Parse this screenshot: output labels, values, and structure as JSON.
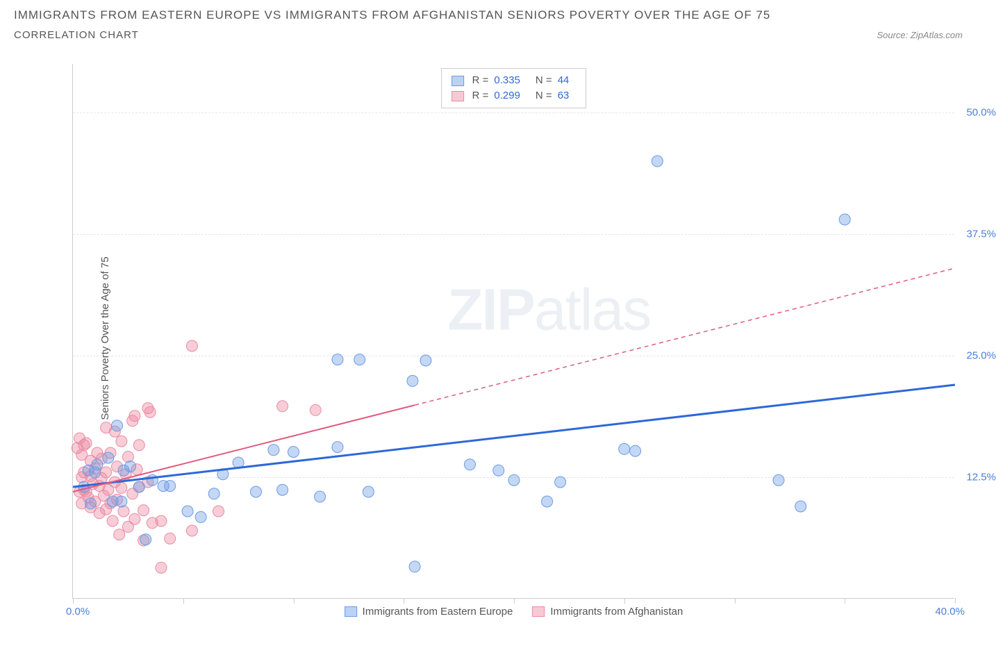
{
  "header": {
    "title": "IMMIGRANTS FROM EASTERN EUROPE VS IMMIGRANTS FROM AFGHANISTAN SENIORS POVERTY OVER THE AGE OF 75",
    "subtitle": "CORRELATION CHART",
    "source_prefix": "Source: ",
    "source_name": "ZipAtlas.com"
  },
  "chart": {
    "type": "scatter",
    "y_label": "Seniors Poverty Over the Age of 75",
    "x_min_label": "0.0%",
    "x_max_label": "40.0%",
    "xlim": [
      0,
      40
    ],
    "ylim": [
      0,
      55
    ],
    "y_ticks": [
      {
        "v": 12.5,
        "label": "12.5%"
      },
      {
        "v": 25.0,
        "label": "25.0%"
      },
      {
        "v": 37.5,
        "label": "37.5%"
      },
      {
        "v": 50.0,
        "label": "50.0%"
      }
    ],
    "x_tick_positions": [
      0,
      5,
      10,
      15,
      20,
      25,
      30,
      35,
      40
    ],
    "grid_color": "#e5e5e5",
    "axis_color": "#cccccc",
    "background_color": "#ffffff",
    "watermark_zip": "ZIP",
    "watermark_atlas": "atlas",
    "series": [
      {
        "key": "eastern_europe",
        "label": "Immigrants from Eastern Europe",
        "color_fill": "rgba(107,155,228,0.40)",
        "color_stroke": "#6b9be4",
        "marker_radius": 8,
        "R": "0.335",
        "N": "44",
        "trend": {
          "x1": 0,
          "y1": 11.5,
          "x2": 40,
          "y2": 22.0,
          "solid_until_x": 40,
          "color": "#2d68d8",
          "width": 3
        },
        "points": [
          [
            0.5,
            11.5
          ],
          [
            0.7,
            13.2
          ],
          [
            0.8,
            9.8
          ],
          [
            1.0,
            13.0
          ],
          [
            1.1,
            13.8
          ],
          [
            1.6,
            14.5
          ],
          [
            1.8,
            10.0
          ],
          [
            2.0,
            17.8
          ],
          [
            2.2,
            10.0
          ],
          [
            2.3,
            13.2
          ],
          [
            2.6,
            13.6
          ],
          [
            3.0,
            11.5
          ],
          [
            3.3,
            6.1
          ],
          [
            3.6,
            12.2
          ],
          [
            4.1,
            11.6
          ],
          [
            4.4,
            11.6
          ],
          [
            5.2,
            9.0
          ],
          [
            5.8,
            8.4
          ],
          [
            6.4,
            10.8
          ],
          [
            6.8,
            12.8
          ],
          [
            7.5,
            14.0
          ],
          [
            8.3,
            11.0
          ],
          [
            9.1,
            15.3
          ],
          [
            9.5,
            11.2
          ],
          [
            10.0,
            15.1
          ],
          [
            11.2,
            10.5
          ],
          [
            12.0,
            15.6
          ],
          [
            12.0,
            24.6
          ],
          [
            13.0,
            24.6
          ],
          [
            13.4,
            11.0
          ],
          [
            15.4,
            22.4
          ],
          [
            15.5,
            3.3
          ],
          [
            16.0,
            24.5
          ],
          [
            18.0,
            13.8
          ],
          [
            19.3,
            13.2
          ],
          [
            20.0,
            12.2
          ],
          [
            21.5,
            10.0
          ],
          [
            22.1,
            12.0
          ],
          [
            25.0,
            15.4
          ],
          [
            25.5,
            15.2
          ],
          [
            26.5,
            45.0
          ],
          [
            32.0,
            12.2
          ],
          [
            33.0,
            9.5
          ],
          [
            35.0,
            39.0
          ]
        ]
      },
      {
        "key": "afghanistan",
        "label": "Immigrants from Afghanistan",
        "color_fill": "rgba(236,138,162,0.42)",
        "color_stroke": "#ec8aa2",
        "marker_radius": 8,
        "R": "0.299",
        "N": "63",
        "trend": {
          "x1": 0,
          "y1": 11.0,
          "x2": 40,
          "y2": 34.0,
          "solid_until_x": 15.5,
          "color": "#e05a7d",
          "width": 2
        },
        "points": [
          [
            0.2,
            15.5
          ],
          [
            0.3,
            11.0
          ],
          [
            0.3,
            16.5
          ],
          [
            0.4,
            12.5
          ],
          [
            0.4,
            14.8
          ],
          [
            0.4,
            9.8
          ],
          [
            0.5,
            11.2
          ],
          [
            0.5,
            15.8
          ],
          [
            0.5,
            13.0
          ],
          [
            0.6,
            11.0
          ],
          [
            0.6,
            16.0
          ],
          [
            0.7,
            10.4
          ],
          [
            0.8,
            12.6
          ],
          [
            0.8,
            9.4
          ],
          [
            0.8,
            14.2
          ],
          [
            0.9,
            11.8
          ],
          [
            1.0,
            10.0
          ],
          [
            1.0,
            13.4
          ],
          [
            1.1,
            15.0
          ],
          [
            1.2,
            8.8
          ],
          [
            1.2,
            11.6
          ],
          [
            1.3,
            12.4
          ],
          [
            1.3,
            14.4
          ],
          [
            1.4,
            10.6
          ],
          [
            1.5,
            9.2
          ],
          [
            1.5,
            13.0
          ],
          [
            1.5,
            17.6
          ],
          [
            1.6,
            11.2
          ],
          [
            1.7,
            9.8
          ],
          [
            1.7,
            15.0
          ],
          [
            1.8,
            8.0
          ],
          [
            1.9,
            12.0
          ],
          [
            1.9,
            17.2
          ],
          [
            2.0,
            10.2
          ],
          [
            2.0,
            13.6
          ],
          [
            2.1,
            6.6
          ],
          [
            2.2,
            11.4
          ],
          [
            2.2,
            16.2
          ],
          [
            2.3,
            9.0
          ],
          [
            2.4,
            12.8
          ],
          [
            2.5,
            7.4
          ],
          [
            2.5,
            14.6
          ],
          [
            2.7,
            10.8
          ],
          [
            2.7,
            18.3
          ],
          [
            2.8,
            18.8
          ],
          [
            2.8,
            8.2
          ],
          [
            2.9,
            13.3
          ],
          [
            3.0,
            11.5
          ],
          [
            3.0,
            15.8
          ],
          [
            3.2,
            6.0
          ],
          [
            3.2,
            9.1
          ],
          [
            3.4,
            12.0
          ],
          [
            3.4,
            19.6
          ],
          [
            3.5,
            19.2
          ],
          [
            3.6,
            7.8
          ],
          [
            4.0,
            8.0
          ],
          [
            4.0,
            3.2
          ],
          [
            4.4,
            6.2
          ],
          [
            5.4,
            7.0
          ],
          [
            5.4,
            26.0
          ],
          [
            6.6,
            9.0
          ],
          [
            9.5,
            19.8
          ],
          [
            11.0,
            19.4
          ]
        ]
      }
    ],
    "legend_stats_labels": {
      "R": "R =",
      "N": "N ="
    }
  }
}
